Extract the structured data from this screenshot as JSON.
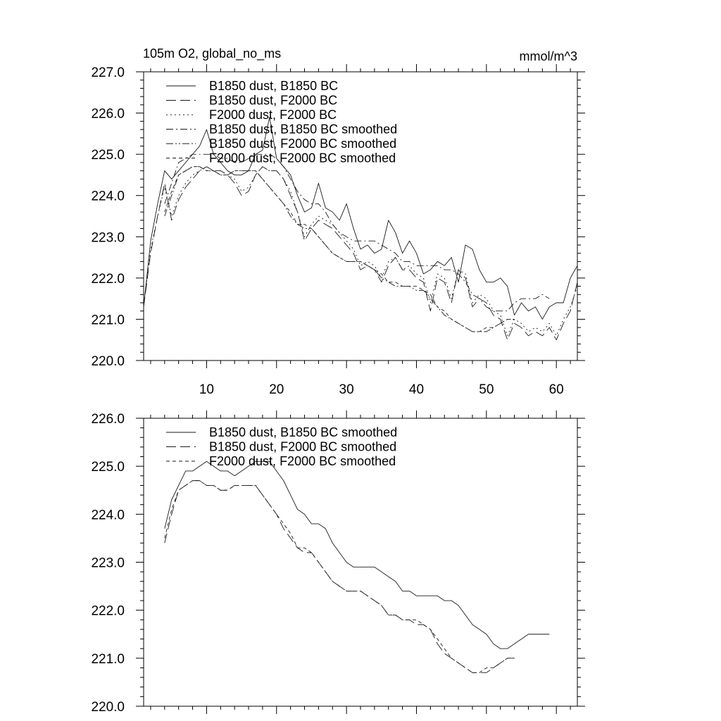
{
  "chart_data": [
    {
      "type": "line",
      "title": "105m O2, global_no_ms",
      "units": "mmol/m^3",
      "xlim": [
        1,
        63
      ],
      "ylim": [
        220.0,
        227.0
      ],
      "xticks": [
        10,
        20,
        30,
        40,
        50,
        60
      ],
      "yticks": [
        220.0,
        221.0,
        222.0,
        223.0,
        224.0,
        225.0,
        226.0,
        227.0
      ],
      "ytick_labels": [
        "220.0",
        "221.0",
        "222.0",
        "223.0",
        "224.0",
        "225.0",
        "226.0",
        "227.0"
      ],
      "x_start": 1,
      "legend_position": "top-left",
      "series": [
        {
          "name": "B1850 dust, B1850 BC",
          "dash": "solid",
          "values": [
            221.3,
            222.9,
            223.8,
            224.6,
            224.4,
            224.6,
            224.8,
            225.0,
            225.2,
            225.6,
            225.0,
            224.8,
            224.6,
            224.5,
            224.5,
            224.6,
            225.0,
            225.1,
            225.9,
            224.9,
            224.7,
            224.5,
            224.0,
            223.6,
            223.7,
            224.3,
            223.7,
            223.6,
            223.4,
            223.8,
            223.2,
            222.7,
            222.8,
            222.6,
            222.7,
            223.4,
            223.1,
            222.6,
            222.9,
            222.6,
            222.1,
            222.2,
            222.4,
            222.3,
            222.5,
            221.9,
            222.8,
            222.7,
            222.2,
            221.9,
            221.9,
            222.0,
            221.8,
            221.1,
            221.4,
            221.2,
            221.3,
            221.0,
            221.3,
            221.4,
            221.4,
            222.0,
            222.3
          ]
        },
        {
          "name": "B1850 dust, F2000 BC",
          "dash": "long",
          "values": [
            221.3,
            222.6,
            223.5,
            224.3,
            223.4,
            223.9,
            224.2,
            224.4,
            224.6,
            224.7,
            224.6,
            224.6,
            224.5,
            224.3,
            224.0,
            224.1,
            224.5,
            224.7,
            224.6,
            224.6,
            224.4,
            224.0,
            223.6,
            222.9,
            223.2,
            223.4,
            223.3,
            223.2,
            223.0,
            222.8,
            222.6,
            222.2,
            222.3,
            222.2,
            221.9,
            222.3,
            222.5,
            222.2,
            222.2,
            222.0,
            221.9,
            221.2,
            222.0,
            221.9,
            221.4,
            222.2,
            222.0,
            221.3,
            221.5,
            221.4,
            221.1,
            221.0,
            220.5,
            220.9,
            220.8,
            220.6,
            220.7,
            220.6,
            220.8,
            220.5,
            220.9,
            221.2,
            221.9
          ]
        },
        {
          "name": "F2000 dust, F2000 BC",
          "dash": "dotted",
          "values": [
            221.3,
            222.7,
            223.5,
            224.2,
            223.5,
            224.0,
            224.3,
            224.5,
            224.6,
            224.7,
            224.6,
            224.6,
            224.5,
            224.4,
            224.1,
            224.2,
            224.5,
            224.7,
            224.6,
            224.6,
            224.4,
            224.1,
            223.6,
            223.0,
            223.3,
            223.5,
            223.4,
            223.3,
            223.1,
            222.9,
            222.7,
            222.3,
            222.4,
            222.3,
            222.0,
            222.4,
            222.5,
            222.2,
            222.3,
            222.1,
            222.0,
            221.4,
            222.1,
            222.0,
            221.5,
            222.2,
            222.1,
            221.4,
            221.6,
            221.5,
            221.2,
            221.1,
            220.6,
            221.0,
            220.9,
            220.7,
            220.8,
            220.7,
            220.9,
            220.6,
            221.0,
            221.3,
            221.8
          ]
        },
        {
          "name": "B1850 dust, B1850 BC smoothed",
          "dash": "dashdot",
          "x_start": 4,
          "values": [
            223.8,
            224.3,
            224.8,
            224.9,
            225.0,
            225.0,
            225.0,
            225.0,
            224.9,
            224.9,
            224.8,
            224.8,
            224.9,
            225.0,
            225.0,
            225.0,
            224.9,
            224.7,
            224.4,
            224.1,
            223.9,
            223.8,
            223.8,
            223.6,
            223.3,
            223.1,
            223.0,
            222.9,
            222.9,
            222.9,
            222.9,
            222.8,
            222.7,
            222.6,
            222.4,
            222.4,
            222.3,
            222.3,
            222.3,
            222.3,
            222.2,
            222.2,
            222.1,
            221.9,
            221.6,
            221.5,
            221.3,
            221.2,
            221.2,
            221.2,
            221.4,
            221.5,
            221.5,
            221.5,
            221.6,
            221.5
          ]
        },
        {
          "name": "B1850 dust, F2000 BC smoothed",
          "dash": "dashdotdot",
          "x_start": 4,
          "values": [
            223.5,
            224.0,
            224.5,
            224.6,
            224.7,
            224.7,
            224.6,
            224.6,
            224.5,
            224.5,
            224.6,
            224.6,
            224.6,
            224.6,
            224.4,
            224.2,
            224.0,
            223.8,
            223.5,
            223.3,
            223.2,
            223.2,
            223.0,
            222.8,
            222.6,
            222.5,
            222.4,
            222.4,
            222.4,
            222.3,
            222.2,
            222.0,
            221.9,
            221.8,
            221.8,
            221.8,
            221.7,
            221.7,
            221.5,
            221.3,
            221.1,
            221.0,
            220.9,
            220.8,
            220.7,
            220.7,
            220.7,
            220.8,
            220.9,
            221.0,
            221.0
          ]
        },
        {
          "name": "F2000 dust, F2000 BC smoothed",
          "dash": "short",
          "x_start": 4,
          "values": [
            223.6,
            224.1,
            224.5,
            224.6,
            224.7,
            224.7,
            224.6,
            224.6,
            224.5,
            224.5,
            224.6,
            224.6,
            224.6,
            224.6,
            224.4,
            224.2,
            224.0,
            223.8,
            223.6,
            223.3,
            223.3,
            223.2,
            223.0,
            222.8,
            222.6,
            222.5,
            222.4,
            222.4,
            222.4,
            222.3,
            222.2,
            222.1,
            221.9,
            221.9,
            221.8,
            221.8,
            221.8,
            221.7,
            221.6,
            221.3,
            221.2,
            221.0,
            220.9,
            220.8,
            220.7,
            220.7,
            220.8,
            220.8,
            220.9,
            221.0,
            221.0
          ]
        }
      ]
    },
    {
      "type": "line",
      "xlim": [
        1,
        63
      ],
      "ylim": [
        220.0,
        226.0
      ],
      "xticks": [
        10,
        20,
        30,
        40,
        50,
        60
      ],
      "yticks": [
        220.0,
        221.0,
        222.0,
        223.0,
        224.0,
        225.0,
        226.0
      ],
      "ytick_labels": [
        "220.0",
        "221.0",
        "222.0",
        "223.0",
        "224.0",
        "225.0",
        "226.0"
      ],
      "x_start": 4,
      "legend_position": "top-left",
      "series": [
        {
          "name": "B1850 dust, B1850 BC smoothed",
          "dash": "solid",
          "values": [
            223.7,
            224.3,
            224.6,
            224.9,
            224.9,
            225.0,
            225.1,
            225.0,
            224.9,
            224.9,
            224.8,
            224.9,
            225.0,
            225.1,
            225.1,
            225.1,
            224.9,
            224.7,
            224.4,
            224.1,
            224.0,
            223.8,
            223.8,
            223.7,
            223.4,
            223.2,
            223.0,
            222.9,
            222.9,
            222.9,
            222.9,
            222.8,
            222.7,
            222.6,
            222.4,
            222.4,
            222.3,
            222.3,
            222.3,
            222.3,
            222.2,
            222.2,
            222.1,
            221.9,
            221.7,
            221.6,
            221.5,
            221.3,
            221.2,
            221.2,
            221.3,
            221.4,
            221.5,
            221.5,
            221.5,
            221.5
          ]
        },
        {
          "name": "B1850 dust, F2000 BC smoothed",
          "dash": "long",
          "values": [
            223.4,
            224.0,
            224.5,
            224.6,
            224.7,
            224.7,
            224.6,
            224.6,
            224.5,
            224.5,
            224.6,
            224.6,
            224.6,
            224.6,
            224.4,
            224.2,
            224.0,
            223.7,
            223.5,
            223.3,
            223.2,
            223.2,
            223.0,
            222.8,
            222.6,
            222.5,
            222.4,
            222.4,
            222.4,
            222.3,
            222.2,
            222.1,
            221.9,
            221.9,
            221.8,
            221.8,
            221.7,
            221.7,
            221.6,
            221.3,
            221.1,
            221.0,
            220.9,
            220.8,
            220.7,
            220.7,
            220.7,
            220.8,
            220.9,
            221.0,
            221.0
          ]
        },
        {
          "name": "F2000 dust, F2000 BC smoothed",
          "dash": "short",
          "values": [
            223.5,
            224.1,
            224.5,
            224.6,
            224.7,
            224.7,
            224.6,
            224.6,
            224.5,
            224.5,
            224.6,
            224.6,
            224.6,
            224.6,
            224.4,
            224.2,
            224.0,
            223.8,
            223.6,
            223.3,
            223.3,
            223.2,
            223.0,
            222.8,
            222.6,
            222.5,
            222.4,
            222.4,
            222.4,
            222.3,
            222.2,
            222.1,
            221.9,
            221.9,
            221.8,
            221.8,
            221.8,
            221.7,
            221.6,
            221.4,
            221.2,
            221.0,
            220.9,
            220.8,
            220.7,
            220.7,
            220.8,
            220.8,
            220.9,
            221.0,
            221.0
          ]
        }
      ]
    }
  ]
}
